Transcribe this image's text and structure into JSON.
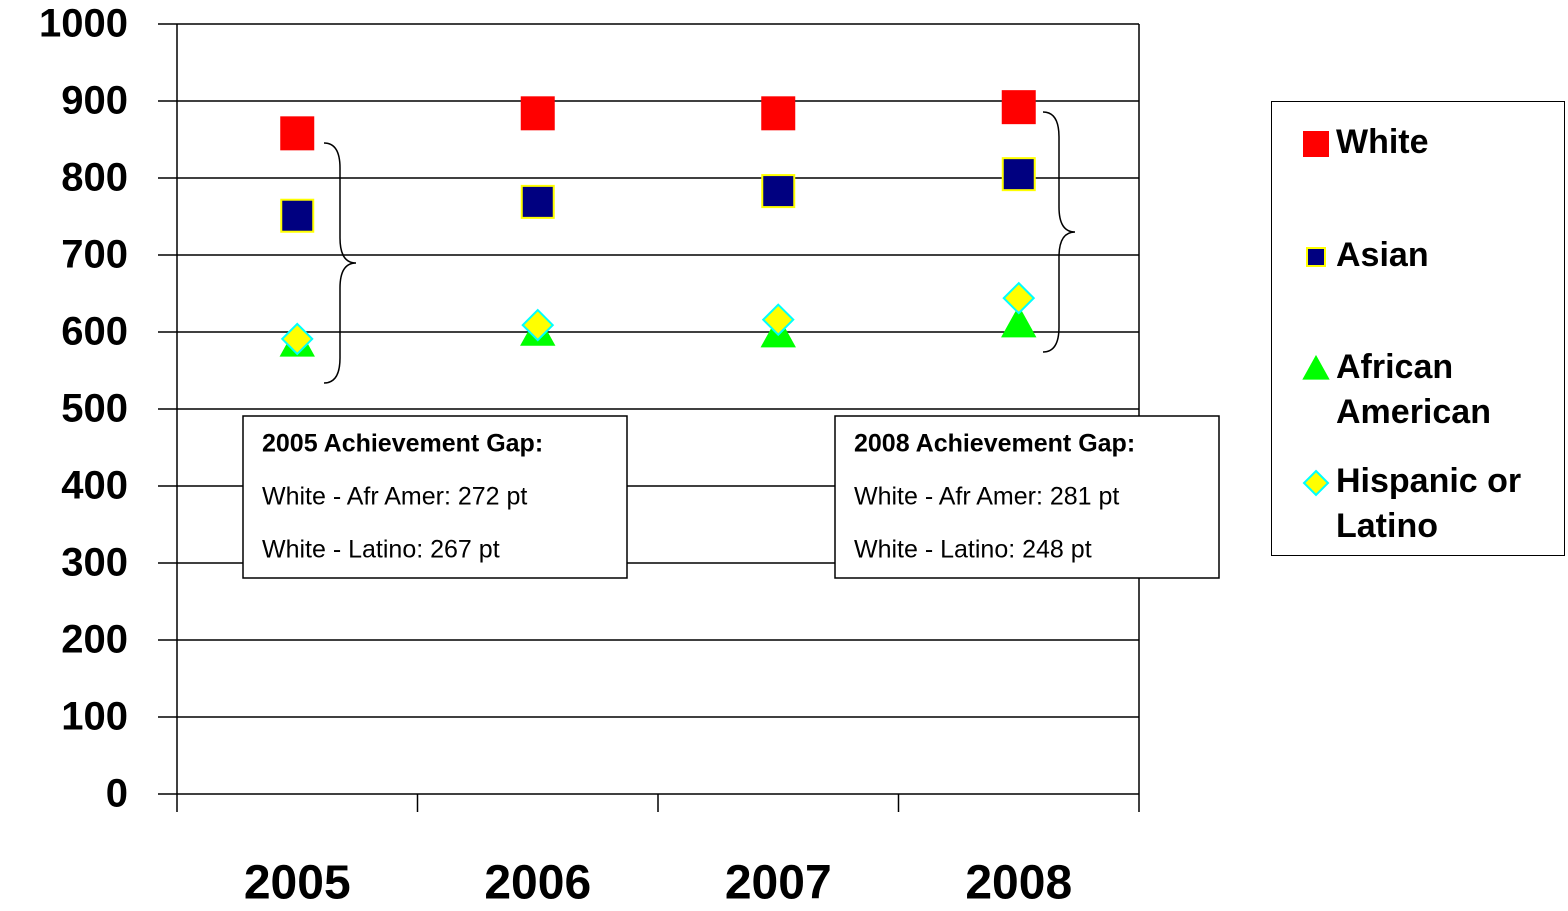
{
  "chart_data": {
    "type": "scatter",
    "categories": [
      "2005",
      "2006",
      "2007",
      "2008"
    ],
    "series": [
      {
        "name": "White",
        "color": "#ff0000",
        "marker": "square",
        "values": [
          858,
          884,
          884,
          892
        ]
      },
      {
        "name": "Asian",
        "color": "#000080",
        "marker": "square",
        "values": [
          751,
          769,
          783,
          805
        ]
      },
      {
        "name": "African American",
        "color": "#00ff00",
        "marker": "triangle",
        "values": [
          586,
          600,
          598,
          611
        ]
      },
      {
        "name": "Hispanic or Latino",
        "color": "#ffff00",
        "marker": "diamond",
        "values": [
          591,
          609,
          616,
          644
        ]
      }
    ],
    "ylim": [
      0,
      1000
    ],
    "yticks": [
      0,
      100,
      200,
      300,
      400,
      500,
      600,
      700,
      800,
      900,
      1000
    ],
    "grid": true,
    "legend": "right",
    "annotations": [
      {
        "title": "2005 Achievement Gap:",
        "lines": [
          "White - Afr Amer: 272 pt",
          "White - Latino: 267 pt"
        ]
      },
      {
        "title": "2008 Achievement Gap:",
        "lines": [
          "White - Afr Amer: 281 pt",
          "White - Latino:  248 pt"
        ]
      }
    ]
  }
}
